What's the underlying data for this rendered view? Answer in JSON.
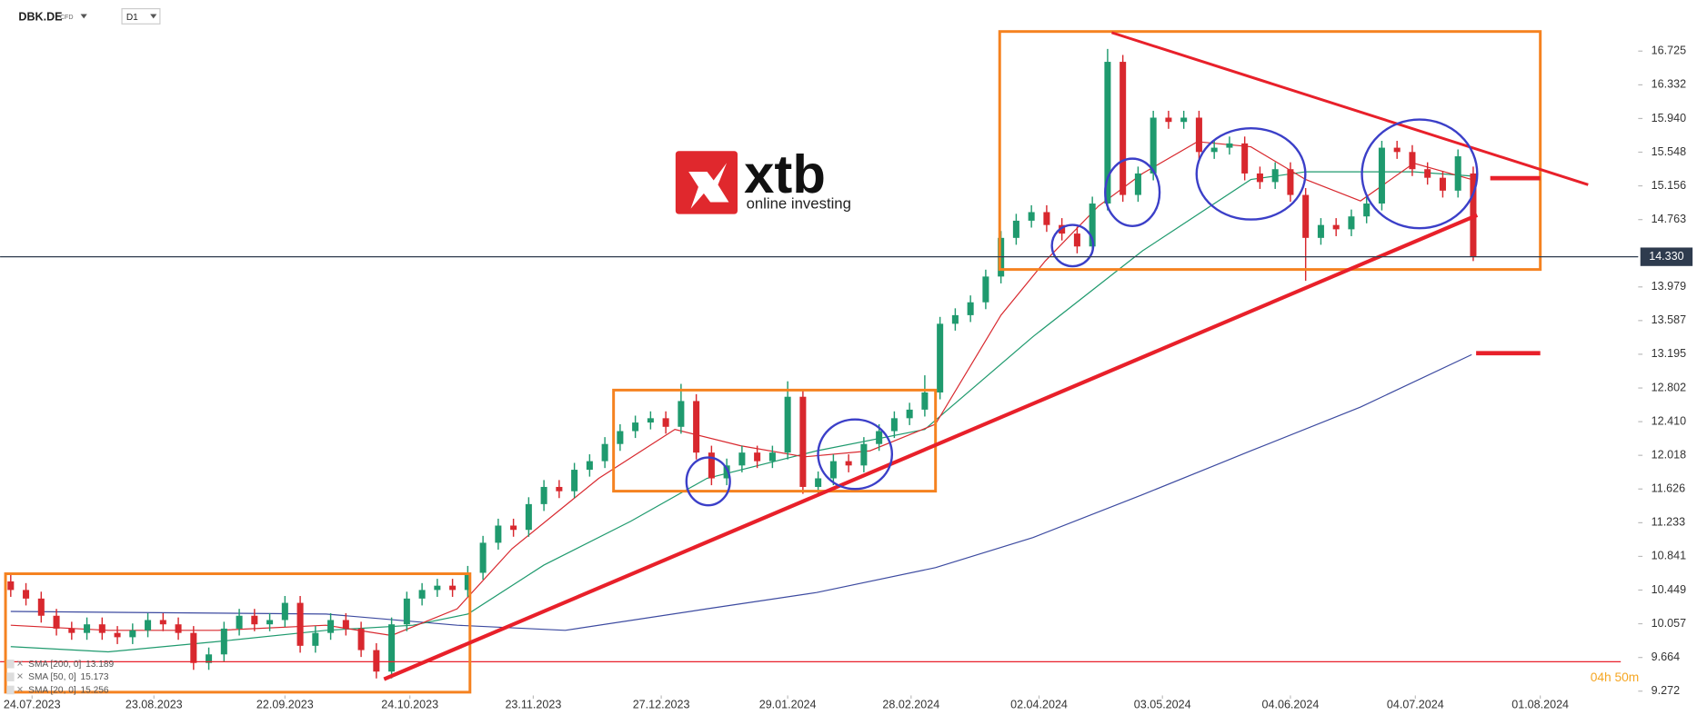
{
  "header": {
    "symbol": "DBK.DE",
    "instrument": "CFD",
    "interval": "D1"
  },
  "logo": {
    "brand": "xtb",
    "tagline": "online investing"
  },
  "chart_data": {
    "type": "candlestick",
    "xlim": [
      -0.7,
      106.4
    ],
    "ylim": [
      9.222,
      17.32
    ],
    "yticks": [
      16.725,
      16.332,
      {
        "value": 15.94,
        "label": "15.940"
      },
      15.548,
      15.156,
      14.763,
      13.979,
      13.587,
      13.195,
      12.802,
      {
        "value": 12.41,
        "label": "12.410"
      },
      12.018,
      11.626,
      11.233,
      10.841,
      10.449,
      10.057,
      9.664,
      9.272
    ],
    "xticks": [
      {
        "value": 1.4,
        "label": "24.07.2023"
      },
      {
        "value": 9.4,
        "label": "23.08.2023"
      },
      {
        "value": 18,
        "label": "22.09.2023"
      },
      {
        "value": 26.2,
        "label": "24.10.2023"
      },
      {
        "value": 34.3,
        "label": "23.11.2023"
      },
      {
        "value": 42.7,
        "label": "27.12.2023"
      },
      {
        "value": 51,
        "label": "29.01.2024"
      },
      {
        "value": 59.1,
        "label": "28.02.2024"
      },
      {
        "value": 67.5,
        "label": "02.04.2024"
      },
      {
        "value": 75.6,
        "label": "03.05.2024"
      },
      {
        "value": 84,
        "label": "04.06.2024"
      },
      {
        "value": 92.2,
        "label": "04.07.2024"
      },
      {
        "value": 100.4,
        "label": "01.08.2024"
      }
    ],
    "up_color": "#1f9a6e",
    "down_color": "#d8282e",
    "open": [
      10.55,
      10.45,
      10.35,
      10.15,
      10.0,
      9.95,
      10.05,
      9.95,
      9.9,
      9.98,
      10.1,
      10.05,
      9.95,
      9.6,
      9.7,
      10.0,
      10.15,
      10.05,
      10.1,
      10.3,
      9.8,
      9.95,
      10.1,
      10.0,
      9.75,
      9.5,
      10.05,
      10.35,
      10.45,
      10.5,
      10.45,
      10.65,
      11.0,
      11.2,
      11.15,
      11.45,
      11.65,
      11.6,
      11.85,
      11.95,
      12.15,
      12.3,
      12.4,
      12.45,
      12.35,
      12.65,
      12.05,
      11.75,
      11.9,
      12.05,
      11.95,
      12.05,
      12.7,
      11.65,
      11.75,
      11.95,
      11.9,
      12.15,
      12.3,
      12.45,
      12.55,
      12.75,
      13.55,
      13.65,
      13.8,
      14.1,
      14.55,
      14.75,
      14.85,
      14.7,
      14.6,
      14.45,
      14.95,
      16.6,
      15.05,
      15.3,
      15.95,
      15.9,
      15.95,
      15.55,
      15.6,
      15.65,
      15.3,
      15.2,
      15.35,
      15.05,
      14.55,
      14.7,
      14.65,
      14.8,
      14.95,
      15.6,
      15.55,
      15.35,
      15.25,
      15.1,
      15.3
    ],
    "high": [
      10.63,
      10.53,
      10.43,
      10.23,
      10.08,
      10.13,
      10.13,
      10.03,
      10.06,
      10.18,
      10.18,
      10.13,
      10.03,
      9.78,
      10.08,
      10.23,
      10.23,
      10.18,
      10.38,
      10.38,
      10.03,
      10.18,
      10.18,
      10.08,
      9.83,
      10.13,
      10.43,
      10.53,
      10.58,
      10.58,
      10.73,
      11.08,
      11.28,
      11.28,
      11.53,
      11.73,
      11.73,
      11.93,
      12.03,
      12.23,
      12.38,
      12.48,
      12.53,
      12.53,
      12.85,
      12.73,
      12.13,
      11.98,
      12.13,
      12.13,
      12.13,
      12.88,
      12.78,
      11.83,
      12.03,
      12.03,
      12.23,
      12.38,
      12.53,
      12.63,
      12.95,
      13.63,
      13.73,
      13.88,
      14.18,
      14.63,
      14.83,
      14.93,
      14.93,
      14.78,
      14.68,
      15.03,
      16.75,
      16.68,
      15.38,
      16.03,
      16.03,
      16.03,
      16.03,
      15.68,
      15.73,
      15.73,
      15.38,
      15.43,
      15.43,
      15.13,
      14.78,
      14.78,
      14.88,
      15.03,
      15.68,
      15.68,
      15.63,
      15.43,
      15.33,
      15.58,
      15.38
    ],
    "low": [
      10.37,
      10.27,
      10.07,
      9.92,
      9.87,
      9.87,
      9.87,
      9.82,
      9.82,
      9.9,
      9.97,
      9.87,
      9.52,
      9.52,
      9.62,
      9.92,
      9.97,
      9.97,
      10.02,
      9.72,
      9.72,
      9.87,
      9.92,
      9.67,
      9.42,
      9.42,
      9.97,
      10.27,
      10.37,
      10.37,
      10.37,
      10.57,
      10.92,
      11.07,
      11.07,
      11.37,
      11.52,
      11.52,
      11.77,
      11.87,
      12.07,
      12.22,
      12.32,
      12.27,
      12.27,
      11.97,
      11.67,
      11.67,
      11.82,
      11.87,
      11.87,
      11.97,
      11.57,
      11.57,
      11.67,
      11.82,
      11.82,
      12.07,
      12.22,
      12.37,
      12.47,
      12.67,
      13.47,
      13.57,
      13.72,
      14.02,
      14.47,
      14.67,
      14.62,
      14.52,
      14.37,
      14.37,
      14.87,
      14.97,
      14.97,
      15.22,
      15.82,
      15.82,
      15.47,
      15.47,
      15.52,
      15.22,
      15.12,
      15.12,
      14.97,
      14.05,
      14.47,
      14.57,
      14.57,
      14.72,
      14.87,
      15.47,
      15.27,
      15.17,
      15.02,
      15.02,
      14.28
    ],
    "close": [
      10.45,
      10.35,
      10.15,
      10.0,
      9.95,
      10.05,
      9.95,
      9.9,
      9.98,
      10.1,
      10.05,
      9.95,
      9.6,
      9.7,
      10.0,
      10.15,
      10.05,
      10.1,
      10.3,
      9.8,
      9.95,
      10.1,
      10.0,
      9.75,
      9.5,
      10.05,
      10.35,
      10.45,
      10.5,
      10.45,
      10.65,
      11.0,
      11.2,
      11.15,
      11.45,
      11.65,
      11.6,
      11.85,
      11.95,
      12.15,
      12.3,
      12.4,
      12.45,
      12.35,
      12.65,
      12.05,
      11.75,
      11.9,
      12.05,
      11.95,
      12.05,
      12.7,
      11.65,
      11.75,
      11.95,
      11.9,
      12.15,
      12.3,
      12.45,
      12.55,
      12.75,
      13.55,
      13.65,
      13.8,
      14.1,
      14.55,
      14.75,
      14.85,
      14.7,
      14.6,
      14.45,
      14.95,
      16.6,
      15.05,
      15.3,
      15.95,
      15.9,
      15.95,
      15.55,
      15.6,
      15.65,
      15.3,
      15.2,
      15.35,
      15.05,
      14.55,
      14.7,
      14.65,
      14.8,
      14.95,
      15.6,
      15.55,
      15.35,
      15.25,
      15.1,
      15.5,
      14.33
    ],
    "series": [
      {
        "name": "SMA [200, 0]",
        "legend_value": 13.189,
        "color": "#3c4aa0",
        "x": [
          0,
          20.7,
          29.3,
          36.4,
          45.7,
          52.9,
          60.7,
          67.1,
          74.3,
          81.4,
          88.6,
          95.9
        ],
        "values": [
          10.2,
          10.17,
          10.04,
          9.98,
          10.23,
          10.42,
          10.71,
          11.06,
          11.56,
          12.07,
          12.58,
          13.19
        ]
      },
      {
        "name": "SMA [50, 0]",
        "legend_value": 15.173,
        "color": "#1f9a6e",
        "x": [
          0,
          6.4,
          13.6,
          20.7,
          26.4,
          30,
          35,
          40.7,
          45.7,
          52.9,
          60,
          67.1,
          74.3,
          81.4,
          85,
          92.1,
          95.9
        ],
        "values": [
          9.79,
          9.73,
          9.85,
          9.98,
          10.04,
          10.17,
          10.74,
          11.25,
          11.75,
          12.07,
          12.32,
          13.4,
          14.4,
          15.23,
          15.32,
          15.32,
          15.27
        ]
      },
      {
        "name": "SMA [20, 0]",
        "legend_value": 15.256,
        "color": "#d8282e",
        "x": [
          0,
          6.4,
          13.6,
          20.7,
          25,
          29.3,
          32.9,
          38.6,
          43.6,
          47.9,
          52.1,
          56.4,
          60.7,
          65,
          67.9,
          71.4,
          74.3,
          77.9,
          81.4,
          85,
          88.6,
          92.1,
          95.9
        ],
        "values": [
          10.04,
          9.98,
          9.98,
          10.04,
          9.92,
          10.23,
          10.93,
          11.75,
          12.32,
          12.13,
          12.0,
          12.07,
          12.38,
          13.65,
          14.28,
          14.92,
          15.3,
          15.67,
          15.61,
          15.23,
          14.98,
          15.42,
          15.23
        ]
      }
    ],
    "last_price": {
      "value": 14.33,
      "label": "14.330"
    },
    "countdown": "04h 50m"
  }
}
